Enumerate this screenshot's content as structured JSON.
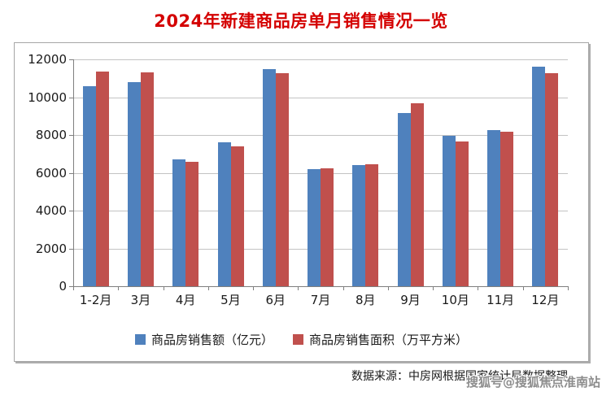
{
  "page": {
    "title": "2024年新建商品房单月销售情况一览",
    "source_note": "数据来源：中房网根据国家统计局数据整理",
    "watermark": "搜狐号@搜狐焦点淮南站"
  },
  "colors": {
    "title": "#d40000",
    "text": "#1a1a1a",
    "gridline": "#c3c3c3",
    "axis": "#7f7f7f",
    "box_border": "#a6a6a6",
    "watermark": "#8d8d8d"
  },
  "chart_data": {
    "type": "bar",
    "title": "2024年新建商品房单月销售情况一览",
    "categories": [
      "1-2月",
      "3月",
      "4月",
      "5月",
      "6月",
      "7月",
      "8月",
      "9月",
      "10月",
      "11月",
      "12月"
    ],
    "series": [
      {
        "name": "商品房销售额（亿元）",
        "color": "#4f81bd",
        "values": [
          10566,
          10789,
          6712,
          7598,
          11468,
          6197,
          6393,
          9157,
          7975,
          8270,
          11625
        ]
      },
      {
        "name": "商品房销售面积（万平方米）",
        "color": "#c0504d",
        "values": [
          11369,
          11299,
          6584,
          7390,
          11274,
          6233,
          6453,
          9682,
          7646,
          8188,
          11267
        ]
      }
    ],
    "ylim": [
      0,
      12000
    ],
    "yticks": [
      0,
      2000,
      4000,
      6000,
      8000,
      10000,
      12000
    ],
    "xlabel": "",
    "ylabel": "",
    "grid": true,
    "legend_position": "bottom"
  }
}
